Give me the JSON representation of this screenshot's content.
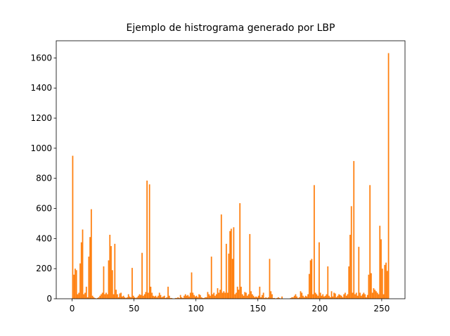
{
  "chart_data": {
    "type": "histogram",
    "title": "Ejemplo de histrograma generado por LBP",
    "color": "#ff7f0e",
    "bins": [
      0,
      1,
      2,
      3,
      4,
      5,
      6,
      7,
      8,
      9,
      10,
      11,
      12,
      13,
      14,
      15,
      16,
      17,
      18,
      19,
      20,
      21,
      22,
      23,
      24,
      25,
      26,
      27,
      28,
      29,
      30,
      31,
      32,
      33,
      34,
      35,
      36,
      37,
      38,
      39,
      40,
      41,
      42,
      43,
      44,
      45,
      46,
      47,
      48,
      49,
      50,
      51,
      52,
      53,
      54,
      55,
      56,
      57,
      58,
      59,
      60,
      61,
      62,
      63,
      64,
      65,
      66,
      67,
      68,
      69,
      70,
      71,
      72,
      73,
      74,
      75,
      76,
      77,
      78,
      79,
      80,
      81,
      82,
      83,
      84,
      85,
      86,
      87,
      88,
      89,
      90,
      91,
      92,
      93,
      94,
      95,
      96,
      97,
      98,
      99,
      100,
      101,
      102,
      103,
      104,
      105,
      106,
      107,
      108,
      109,
      110,
      111,
      112,
      113,
      114,
      115,
      116,
      117,
      118,
      119,
      120,
      121,
      122,
      123,
      124,
      125,
      126,
      127,
      128,
      129,
      130,
      131,
      132,
      133,
      134,
      135,
      136,
      137,
      138,
      139,
      140,
      141,
      142,
      143,
      144,
      145,
      146,
      147,
      148,
      149,
      150,
      151,
      152,
      153,
      154,
      155,
      156,
      157,
      158,
      159,
      160,
      161,
      162,
      163,
      164,
      165,
      166,
      167,
      168,
      169,
      170,
      171,
      172,
      173,
      174,
      175,
      176,
      177,
      178,
      179,
      180,
      181,
      182,
      183,
      184,
      185,
      186,
      187,
      188,
      189,
      190,
      191,
      192,
      193,
      194,
      195,
      196,
      197,
      198,
      199,
      200,
      201,
      202,
      203,
      204,
      205,
      206,
      207,
      208,
      209,
      210,
      211,
      212,
      213,
      214,
      215,
      216,
      217,
      218,
      219,
      220,
      221,
      222,
      223,
      224,
      225,
      226,
      227,
      228,
      229,
      230,
      231,
      232,
      233,
      234,
      235,
      236,
      237,
      238,
      239,
      240,
      241,
      242,
      243,
      244,
      245,
      246,
      247,
      248,
      249,
      250,
      251,
      252,
      253,
      254,
      255,
      256
    ],
    "values": [
      950,
      160,
      200,
      190,
      30,
      40,
      235,
      375,
      460,
      30,
      40,
      80,
      10,
      280,
      410,
      595,
      20,
      10,
      5,
      0,
      5,
      10,
      20,
      30,
      40,
      215,
      30,
      40,
      30,
      255,
      425,
      350,
      190,
      30,
      365,
      60,
      30,
      10,
      35,
      40,
      15,
      20,
      10,
      5,
      10,
      30,
      15,
      10,
      205,
      20,
      10,
      5,
      10,
      20,
      30,
      25,
      305,
      20,
      30,
      45,
      785,
      40,
      760,
      80,
      40,
      20,
      15,
      20,
      10,
      20,
      40,
      25,
      10,
      15,
      20,
      5,
      10,
      80,
      20,
      5,
      5,
      0,
      0,
      5,
      5,
      10,
      5,
      25,
      10,
      5,
      20,
      30,
      20,
      25,
      15,
      40,
      175,
      40,
      25,
      15,
      20,
      10,
      30,
      25,
      10,
      5,
      5,
      10,
      10,
      45,
      30,
      20,
      280,
      30,
      40,
      20,
      30,
      70,
      40,
      60,
      560,
      40,
      50,
      40,
      365,
      40,
      300,
      450,
      465,
      265,
      475,
      30,
      40,
      80,
      60,
      635,
      80,
      30,
      20,
      45,
      40,
      20,
      30,
      430,
      50,
      30,
      20,
      10,
      15,
      10,
      20,
      80,
      10,
      25,
      40,
      5,
      10,
      5,
      10,
      265,
      50,
      30,
      5,
      5,
      0,
      5,
      10,
      5,
      0,
      15,
      0,
      0,
      0,
      0,
      0,
      0,
      5,
      10,
      10,
      20,
      30,
      15,
      5,
      10,
      50,
      40,
      20,
      10,
      20,
      15,
      30,
      165,
      255,
      265,
      30,
      755,
      40,
      30,
      20,
      375,
      40,
      20,
      30,
      15,
      20,
      30,
      215,
      20,
      10,
      50,
      15,
      40,
      35,
      10,
      20,
      30,
      25,
      20,
      10,
      30,
      40,
      20,
      30,
      215,
      425,
      615,
      40,
      915,
      30,
      40,
      20,
      345,
      40,
      20,
      30,
      40,
      30,
      10,
      25,
      160,
      755,
      170,
      40,
      70,
      60,
      50,
      40,
      30,
      485,
      395,
      200,
      30,
      225,
      240,
      185,
      1632
    ],
    "xlim": [
      -12.8,
      268.8
    ],
    "xticks": [
      0,
      50,
      100,
      150,
      200,
      250
    ],
    "ylim": [
      0,
      1714
    ],
    "yticks": [
      0,
      200,
      400,
      600,
      800,
      1000,
      1200,
      1400,
      1600
    ]
  }
}
